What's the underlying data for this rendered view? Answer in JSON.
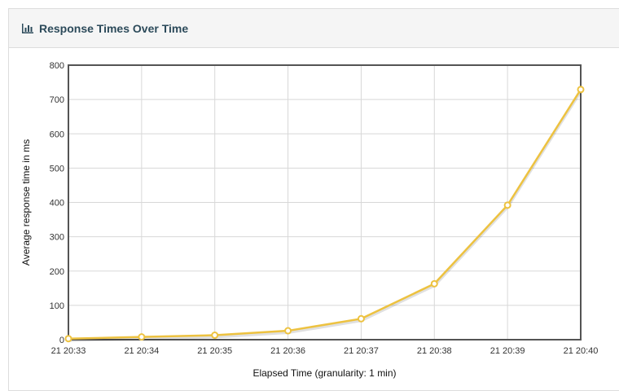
{
  "panel": {
    "title": "Response Times Over Time",
    "icon": "bar-chart-icon"
  },
  "colors": {
    "series": "#edc240",
    "grid": "#d8d8d8",
    "axis": "#545454"
  },
  "chart_data": {
    "type": "line",
    "title": "",
    "xlabel": "Elapsed Time (granularity: 1 min)",
    "ylabel": "Average response time in ms",
    "categories": [
      "21 20:33",
      "21 20:34",
      "21 20:35",
      "21 20:36",
      "21 20:37",
      "21 20:38",
      "21 20:39",
      "21 20:40"
    ],
    "series": [
      {
        "values": [
          3,
          8,
          13,
          26,
          61,
          163,
          392,
          729
        ]
      }
    ],
    "ylim": [
      0,
      800
    ],
    "yticks": [
      0,
      100,
      200,
      300,
      400,
      500,
      600,
      700,
      800
    ],
    "grid": true
  }
}
